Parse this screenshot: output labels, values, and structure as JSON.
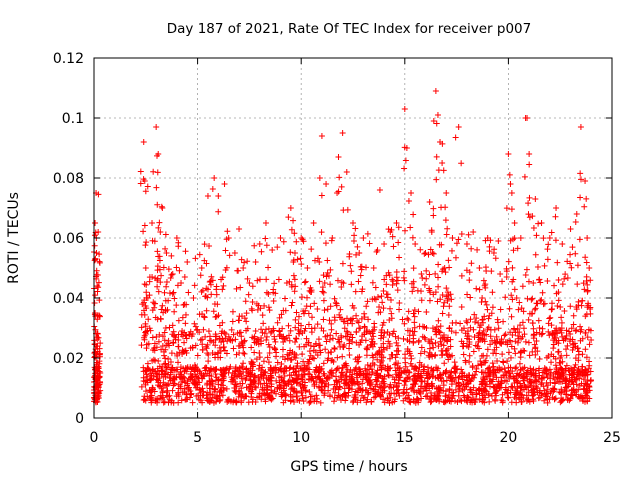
{
  "chart_data": {
    "type": "scatter",
    "title": "Day 187 of 2021, Rate Of TEC Index for receiver p007",
    "xlabel": "GPS time / hours",
    "ylabel": "ROTI / TECUs",
    "xlim": [
      0,
      25
    ],
    "ylim": [
      0,
      0.12
    ],
    "x_ticks": [
      0,
      5,
      10,
      15,
      20,
      25
    ],
    "x_tick_labels": [
      "0",
      "5",
      "10",
      "15",
      "20",
      "25"
    ],
    "y_ticks": [
      0,
      0.02,
      0.04,
      0.06,
      0.08,
      0.1,
      0.12
    ],
    "y_tick_labels": [
      "0",
      "0.02",
      "0.04",
      "0.06",
      "0.08",
      "0.1",
      "0.12"
    ],
    "grid": true,
    "marker": "plus",
    "color": "#ff0000",
    "series": [
      {
        "points": [
          [
            0.0,
            0.012
          ],
          [
            0.05,
            0.065
          ],
          [
            0.1,
            0.075
          ],
          [
            0.12,
            0.055
          ],
          [
            0.15,
            0.044
          ],
          [
            0.2,
            0.062
          ],
          [
            0.1,
            0.02
          ],
          [
            0.2,
            0.008
          ],
          [
            0.3,
            0.015
          ],
          [
            0.05,
            0.035
          ],
          [
            2.4,
            0.092
          ],
          [
            2.45,
            0.079
          ],
          [
            2.5,
            0.05
          ],
          [
            2.6,
            0.04
          ],
          [
            2.8,
            0.065
          ],
          [
            3.0,
            0.097
          ],
          [
            3.1,
            0.088
          ],
          [
            3.2,
            0.062
          ],
          [
            3.3,
            0.07
          ],
          [
            3.5,
            0.055
          ],
          [
            3.8,
            0.048
          ],
          [
            4.0,
            0.06
          ],
          [
            4.2,
            0.045
          ],
          [
            4.5,
            0.052
          ],
          [
            4.8,
            0.04
          ],
          [
            5.2,
            0.05
          ],
          [
            5.5,
            0.074
          ],
          [
            5.8,
            0.08
          ],
          [
            6.0,
            0.074
          ],
          [
            6.3,
            0.078
          ],
          [
            6.5,
            0.06
          ],
          [
            6.8,
            0.055
          ],
          [
            7.0,
            0.063
          ],
          [
            7.2,
            0.05
          ],
          [
            7.5,
            0.045
          ],
          [
            7.8,
            0.052
          ],
          [
            8.0,
            0.058
          ],
          [
            8.3,
            0.065
          ],
          [
            8.6,
            0.056
          ],
          [
            9.0,
            0.06
          ],
          [
            9.5,
            0.07
          ],
          [
            9.7,
            0.055
          ],
          [
            10.0,
            0.06
          ],
          [
            10.3,
            0.05
          ],
          [
            10.6,
            0.065
          ],
          [
            10.9,
            0.08
          ],
          [
            11.0,
            0.094
          ],
          [
            11.2,
            0.078
          ],
          [
            11.5,
            0.06
          ],
          [
            11.8,
            0.087
          ],
          [
            12.0,
            0.095
          ],
          [
            12.2,
            0.082
          ],
          [
            12.5,
            0.065
          ],
          [
            12.8,
            0.055
          ],
          [
            13.0,
            0.06
          ],
          [
            13.5,
            0.05
          ],
          [
            13.8,
            0.076
          ],
          [
            14.0,
            0.058
          ],
          [
            14.3,
            0.062
          ],
          [
            14.6,
            0.065
          ],
          [
            15.0,
            0.103
          ],
          [
            15.1,
            0.09
          ],
          [
            15.3,
            0.075
          ],
          [
            15.5,
            0.058
          ],
          [
            15.8,
            0.048
          ],
          [
            16.0,
            0.055
          ],
          [
            16.2,
            0.072
          ],
          [
            16.4,
            0.099
          ],
          [
            16.5,
            0.109
          ],
          [
            16.6,
            0.101
          ],
          [
            16.7,
            0.092
          ],
          [
            16.8,
            0.085
          ],
          [
            17.0,
            0.075
          ],
          [
            17.3,
            0.06
          ],
          [
            17.6,
            0.097
          ],
          [
            18.0,
            0.058
          ],
          [
            18.3,
            0.062
          ],
          [
            18.6,
            0.05
          ],
          [
            19.0,
            0.06
          ],
          [
            19.3,
            0.055
          ],
          [
            19.6,
            0.048
          ],
          [
            20.0,
            0.088
          ],
          [
            20.1,
            0.078
          ],
          [
            20.3,
            0.065
          ],
          [
            20.6,
            0.06
          ],
          [
            20.9,
            0.1
          ],
          [
            21.0,
            0.088
          ],
          [
            21.3,
            0.073
          ],
          [
            21.6,
            0.065
          ],
          [
            22.0,
            0.06
          ],
          [
            22.3,
            0.07
          ],
          [
            22.6,
            0.058
          ],
          [
            23.0,
            0.063
          ],
          [
            23.3,
            0.068
          ],
          [
            23.5,
            0.097
          ],
          [
            23.7,
            0.079
          ],
          [
            23.8,
            0.06
          ],
          [
            23.9,
            0.05
          ],
          [
            20.4,
            0.04
          ],
          [
            21.2,
            0.045
          ]
        ]
      }
    ]
  }
}
